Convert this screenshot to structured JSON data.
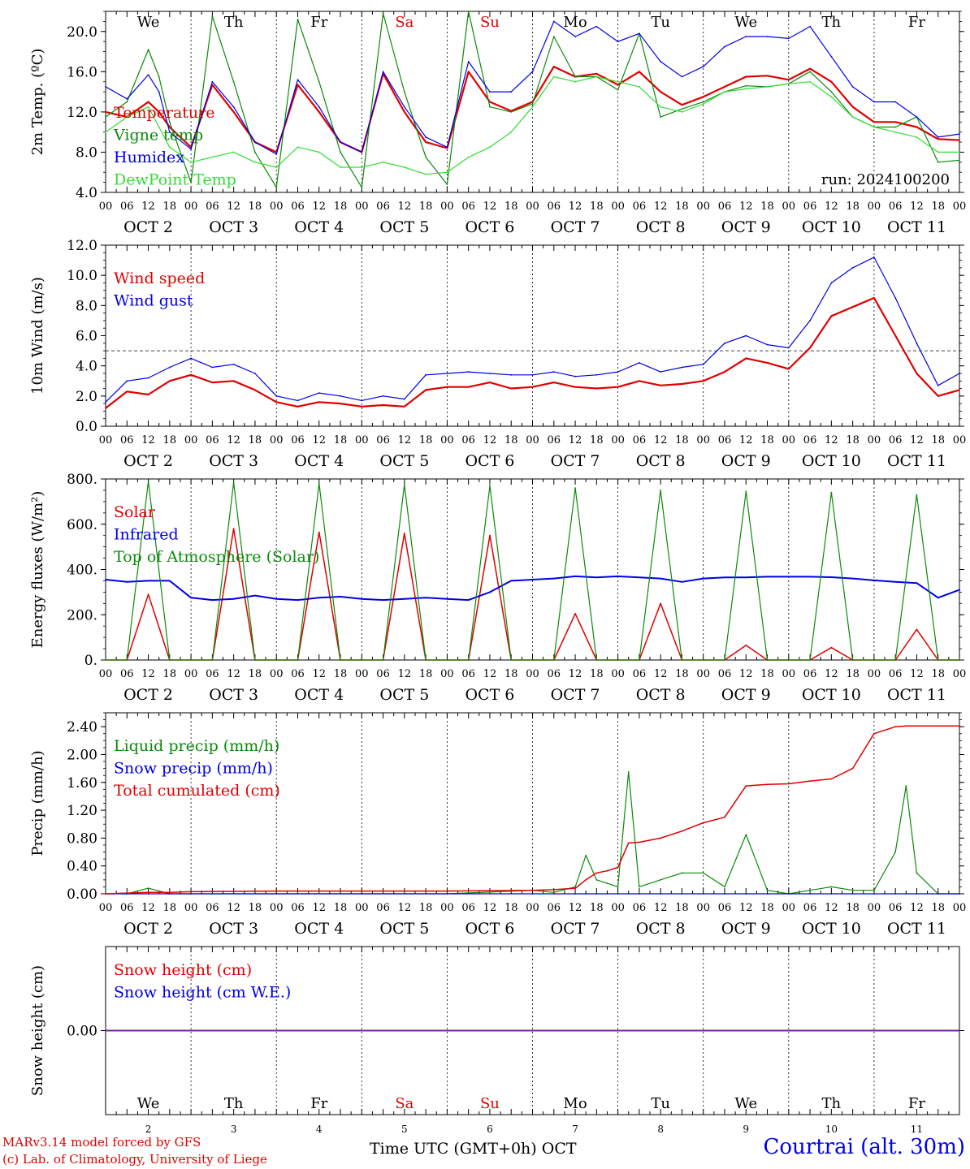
{
  "footer": {
    "credit_line1": "MARv3.14 model forced by GFS",
    "credit_line2": "(c) Lab. of Climatology, University of Liege",
    "time_label": "Time UTC (GMT+0h)",
    "month_label": "OCT",
    "site": "Courtrai (alt. 30m)"
  },
  "colors": {
    "red": "#e00000",
    "green": "#0a8a0a",
    "blue": "#0000e6",
    "lightgreen": "#33dd33",
    "black": "#000000",
    "purple": "#7a1f9a"
  },
  "weekdays": [
    {
      "label": "We",
      "color": "#000000"
    },
    {
      "label": "Th",
      "color": "#000000"
    },
    {
      "label": "Fr",
      "color": "#000000"
    },
    {
      "label": "Sa",
      "color": "#e00000"
    },
    {
      "label": "Su",
      "color": "#e00000"
    },
    {
      "label": "Mo",
      "color": "#000000"
    },
    {
      "label": "Tu",
      "color": "#000000"
    },
    {
      "label": "We",
      "color": "#000000"
    },
    {
      "label": "Th",
      "color": "#000000"
    },
    {
      "label": "Fr",
      "color": "#000000"
    }
  ],
  "date_labels": [
    "OCT  2",
    "OCT  3",
    "OCT  4",
    "OCT  5",
    "OCT  6",
    "OCT  7",
    "OCT  8",
    "OCT  9",
    "OCT 10",
    "OCT 11"
  ],
  "bottom_day_numbers": [
    "2",
    "3",
    "4",
    "5",
    "6",
    "7",
    "8",
    "9",
    "10",
    "11"
  ],
  "hour_ticks": [
    "00",
    "06",
    "12",
    "18"
  ],
  "chart_data": [
    {
      "type": "line",
      "id": "temperature",
      "ylabel": "2m Temp. (ºC)",
      "ylim": [
        4.0,
        22.0
      ],
      "yticks": [
        "4.0",
        "8.0",
        "12.0",
        "16.0",
        "20.0"
      ],
      "ytick_values": [
        4,
        8,
        12,
        16,
        20
      ],
      "annotation": "run: 2024100200",
      "x_unit": "hours since 2024-10-02 00 UTC",
      "x": [
        0,
        6,
        12,
        15,
        18,
        24,
        30,
        36,
        42,
        48,
        54,
        60,
        66,
        72,
        78,
        84,
        90,
        96,
        102,
        108,
        114,
        120,
        126,
        132,
        138,
        144,
        150,
        156,
        162,
        168,
        174,
        180,
        186,
        192,
        198,
        204,
        210,
        216,
        222,
        228,
        234,
        240
      ],
      "series": [
        {
          "name": "Temperature",
          "color": "#e00000",
          "width": 2.2,
          "values": [
            12.0,
            11.5,
            13.0,
            12.0,
            10.5,
            8.5,
            14.7,
            12.0,
            9.0,
            8.0,
            14.7,
            12.0,
            9.0,
            8.0,
            15.8,
            12.0,
            9.0,
            8.4,
            16.0,
            13.0,
            12.1,
            13.0,
            16.5,
            15.5,
            15.8,
            14.7,
            16.0,
            14.0,
            12.7,
            13.5,
            14.5,
            15.5,
            15.6,
            15.2,
            16.3,
            15.0,
            12.5,
            11.0,
            11.0,
            10.5,
            9.3,
            9.2
          ]
        },
        {
          "name": "Vigne temp",
          "color": "#0a8a0a",
          "width": 1.2,
          "values": [
            11.5,
            13.0,
            18.2,
            15.5,
            11.0,
            5.0,
            21.5,
            15.0,
            8.0,
            4.5,
            21.2,
            15.0,
            8.0,
            4.5,
            21.8,
            14.0,
            7.5,
            4.8,
            22.0,
            12.5,
            12.0,
            12.8,
            19.5,
            15.5,
            15.5,
            14.2,
            19.8,
            11.5,
            12.3,
            13.0,
            14.0,
            14.6,
            14.5,
            14.8,
            16.0,
            14.0,
            11.5,
            10.5,
            10.5,
            11.5,
            7.0,
            7.2
          ]
        },
        {
          "name": "Humidex",
          "color": "#0000e6",
          "width": 1.2,
          "values": [
            14.5,
            13.3,
            15.7,
            14.0,
            10.0,
            8.3,
            15.0,
            12.5,
            9.0,
            7.8,
            15.2,
            12.5,
            9.0,
            8.0,
            16.0,
            12.5,
            9.5,
            8.5,
            17.0,
            14.0,
            14.0,
            16.0,
            21.0,
            19.5,
            20.5,
            19.0,
            19.8,
            17.0,
            15.5,
            16.5,
            18.5,
            19.5,
            19.5,
            19.3,
            20.5,
            17.5,
            14.5,
            13.0,
            13.0,
            11.5,
            9.5,
            9.8
          ]
        },
        {
          "name": "DewPoint Temp",
          "color": "#33dd33",
          "width": 1.2,
          "values": [
            10.0,
            11.5,
            12.5,
            10.5,
            8.5,
            7.0,
            7.5,
            8.0,
            7.0,
            6.5,
            8.5,
            8.0,
            6.5,
            6.5,
            7.0,
            6.5,
            5.8,
            6.0,
            7.5,
            8.5,
            10.0,
            12.5,
            15.5,
            15.0,
            15.5,
            15.0,
            14.5,
            12.5,
            12.0,
            12.8,
            14.0,
            14.3,
            14.5,
            14.8,
            15.0,
            13.5,
            11.5,
            10.5,
            10.0,
            9.5,
            8.0,
            8.0
          ]
        }
      ]
    },
    {
      "type": "line",
      "id": "wind",
      "ylabel": "10m Wind (m/s)",
      "ylim": [
        0.0,
        12.0
      ],
      "yticks": [
        "0.0",
        "2.0",
        "4.0",
        "6.0",
        "8.0",
        "10.0",
        "12.0"
      ],
      "ytick_values": [
        0,
        2,
        4,
        6,
        8,
        10,
        12
      ],
      "reference_line": 5.0,
      "x_unit": "hours since 2024-10-02 00 UTC",
      "x": [
        0,
        6,
        12,
        18,
        24,
        30,
        36,
        42,
        48,
        54,
        60,
        66,
        72,
        78,
        84,
        90,
        96,
        102,
        108,
        114,
        120,
        126,
        132,
        138,
        144,
        150,
        156,
        162,
        168,
        174,
        180,
        186,
        192,
        198,
        204,
        210,
        216,
        222,
        228,
        234,
        240
      ],
      "series": [
        {
          "name": "Wind speed",
          "color": "#e00000",
          "width": 2.2,
          "values": [
            1.2,
            2.3,
            2.1,
            3.0,
            3.4,
            2.9,
            3.0,
            2.4,
            1.6,
            1.3,
            1.6,
            1.5,
            1.3,
            1.4,
            1.3,
            2.4,
            2.6,
            2.6,
            2.9,
            2.5,
            2.6,
            2.9,
            2.6,
            2.5,
            2.6,
            3.0,
            2.7,
            2.8,
            3.0,
            3.6,
            4.5,
            4.2,
            3.8,
            5.2,
            7.3,
            7.9,
            8.5,
            6.0,
            3.5,
            2.0,
            2.4
          ]
        },
        {
          "name": "Wind gust",
          "color": "#0000e6",
          "width": 1.2,
          "values": [
            1.6,
            3.0,
            3.2,
            3.9,
            4.5,
            3.9,
            4.1,
            3.5,
            2.0,
            1.7,
            2.2,
            2.0,
            1.7,
            2.0,
            1.8,
            3.4,
            3.5,
            3.6,
            3.5,
            3.4,
            3.4,
            3.6,
            3.3,
            3.4,
            3.6,
            4.2,
            3.6,
            3.9,
            4.1,
            5.5,
            6.0,
            5.4,
            5.2,
            7.0,
            9.5,
            10.5,
            11.2,
            8.5,
            5.5,
            2.7,
            3.5
          ]
        }
      ]
    },
    {
      "type": "line",
      "id": "energy",
      "ylabel": "Energy fluxes (W/m²)",
      "ylim": [
        0,
        800
      ],
      "yticks": [
        "0.",
        "200.",
        "400.",
        "600.",
        "800."
      ],
      "ytick_values": [
        0,
        200,
        400,
        600,
        800
      ],
      "x_unit": "hours since 2024-10-02 00 UTC",
      "x": [
        0,
        6,
        12,
        18,
        24,
        30,
        36,
        42,
        48,
        54,
        60,
        66,
        72,
        78,
        84,
        90,
        96,
        102,
        108,
        114,
        120,
        126,
        132,
        138,
        144,
        150,
        156,
        162,
        168,
        174,
        180,
        186,
        192,
        198,
        204,
        210,
        216,
        222,
        228,
        234,
        240
      ],
      "series": [
        {
          "name": "Solar",
          "color": "#e00000",
          "width": 1.5,
          "values": [
            0,
            0,
            290,
            0,
            0,
            0,
            580,
            0,
            0,
            0,
            565,
            0,
            0,
            0,
            560,
            0,
            0,
            0,
            550,
            0,
            0,
            0,
            205,
            0,
            0,
            0,
            250,
            0,
            0,
            0,
            65,
            0,
            0,
            0,
            55,
            0,
            0,
            0,
            135,
            0,
            0
          ]
        },
        {
          "name": "Infrared",
          "color": "#0000e6",
          "width": 2.0,
          "values": [
            355,
            345,
            350,
            350,
            275,
            265,
            270,
            285,
            270,
            265,
            275,
            280,
            270,
            265,
            270,
            275,
            270,
            265,
            300,
            350,
            355,
            360,
            370,
            365,
            370,
            365,
            360,
            345,
            360,
            365,
            365,
            368,
            368,
            368,
            366,
            360,
            352,
            345,
            340,
            275,
            310
          ]
        },
        {
          "name": "Top of Atmosphere (Solar)",
          "color": "#0a8a0a",
          "width": 1.2,
          "values": [
            0,
            0,
            790,
            0,
            0,
            0,
            785,
            0,
            0,
            0,
            780,
            0,
            0,
            0,
            775,
            0,
            0,
            0,
            770,
            0,
            0,
            0,
            760,
            0,
            0,
            0,
            750,
            0,
            0,
            0,
            745,
            0,
            0,
            0,
            740,
            0,
            0,
            0,
            730,
            0,
            0
          ]
        }
      ]
    },
    {
      "type": "line",
      "id": "precip",
      "ylabel": "Precip (mm/h)",
      "ylim": [
        0.0,
        2.6
      ],
      "yticks": [
        "0.00",
        "0.40",
        "0.80",
        "1.20",
        "1.60",
        "2.00",
        "2.40"
      ],
      "ytick_values": [
        0,
        0.4,
        0.8,
        1.2,
        1.6,
        2.0,
        2.4
      ],
      "x_unit": "hours since 2024-10-02 00 UTC",
      "x": [
        0,
        6,
        12,
        18,
        24,
        48,
        72,
        96,
        120,
        126,
        132,
        135,
        138,
        141,
        144,
        147,
        150,
        156,
        162,
        168,
        174,
        180,
        186,
        192,
        198,
        204,
        210,
        216,
        222,
        225,
        228,
        234,
        240
      ],
      "series": [
        {
          "name": "Liquid precip (mm/h)",
          "color": "#0a8a0a",
          "width": 1.2,
          "values": [
            0,
            0,
            0.08,
            0,
            0,
            0,
            0,
            0,
            0.05,
            0.02,
            0.1,
            0.55,
            0.2,
            0.15,
            0.1,
            1.75,
            0.1,
            0.2,
            0.3,
            0.3,
            0.1,
            0.85,
            0.05,
            0,
            0.05,
            0.1,
            0.05,
            0.05,
            0.6,
            1.55,
            0.3,
            0,
            0
          ]
        },
        {
          "name": "Snow precip (mm/h)",
          "color": "#0000e6",
          "width": 1.2,
          "values": [
            0,
            0,
            0,
            0,
            0,
            0,
            0,
            0,
            0,
            0,
            0,
            0,
            0,
            0,
            0,
            0,
            0,
            0,
            0,
            0,
            0,
            0,
            0,
            0,
            0,
            0,
            0,
            0,
            0,
            0,
            0,
            0,
            0
          ]
        },
        {
          "name": "Total cumulated (cm)",
          "color": "#e00000",
          "width": 1.5,
          "values": [
            0,
            0.01,
            0.02,
            0.02,
            0.03,
            0.04,
            0.04,
            0.04,
            0.05,
            0.06,
            0.08,
            0.2,
            0.3,
            0.33,
            0.38,
            0.73,
            0.74,
            0.8,
            0.9,
            1.02,
            1.1,
            1.55,
            1.57,
            1.58,
            1.62,
            1.65,
            1.8,
            2.3,
            2.4,
            2.41,
            2.41,
            2.41,
            2.41
          ]
        }
      ]
    },
    {
      "type": "line",
      "id": "snow",
      "ylabel": "Snow height (cm)",
      "ylim": [
        -1.0,
        1.0
      ],
      "yticks": [
        "0.00"
      ],
      "ytick_values": [
        0
      ],
      "x_unit": "hours since 2024-10-02 00 UTC",
      "x": [
        0,
        240
      ],
      "series": [
        {
          "name": "Snow height (cm)",
          "color": "#e00000",
          "width": 1.5,
          "values": [
            0,
            0
          ]
        },
        {
          "name": "Snow height (cm W.E.)",
          "color": "#0000e6",
          "width": 1.5,
          "values": [
            0,
            0
          ]
        }
      ]
    }
  ]
}
